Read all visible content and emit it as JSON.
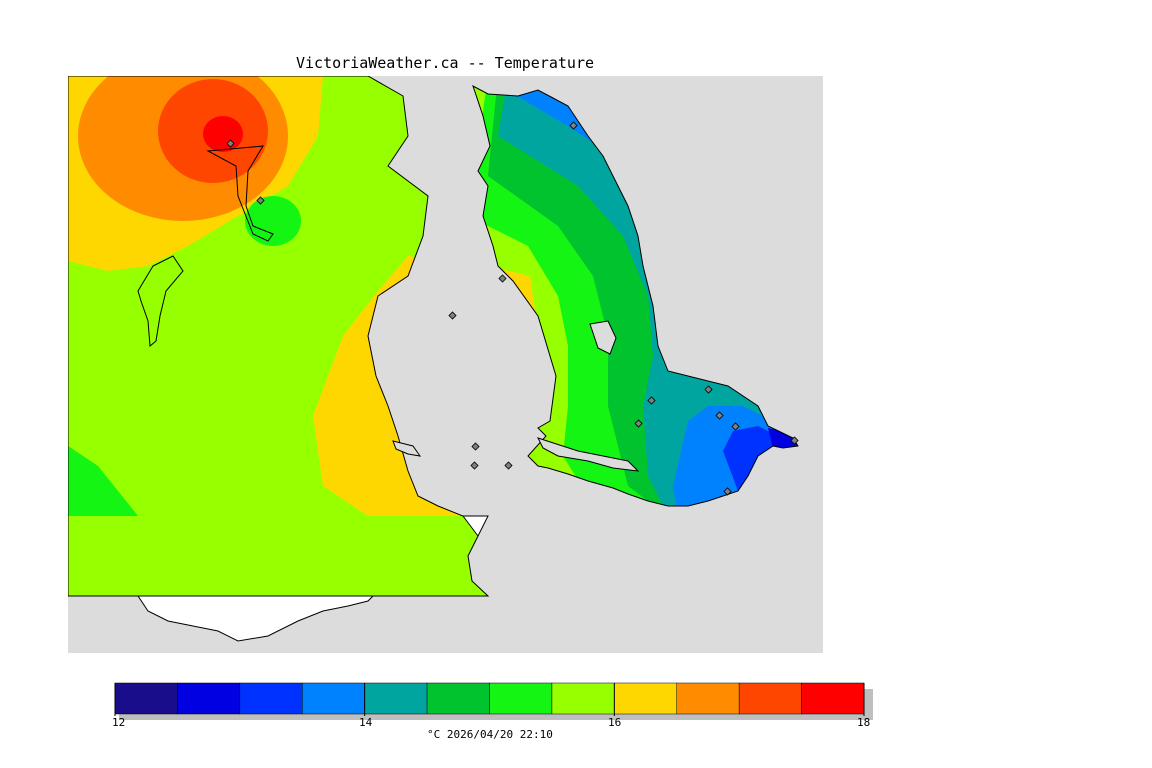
{
  "title": "VictoriaWeather.ca -- Temperature",
  "colors": {
    "land_shade": "#dcdcdc",
    "outline": "#000000",
    "station_fill": "#808080"
  },
  "legend": {
    "min": 12,
    "max": 18,
    "step": 0.5,
    "bins": [
      {
        "from": 12.0,
        "to": 12.5,
        "color": "#1a0d8c"
      },
      {
        "from": 12.5,
        "to": 13.0,
        "color": "#0000e0"
      },
      {
        "from": 13.0,
        "to": 13.5,
        "color": "#0032ff"
      },
      {
        "from": 13.5,
        "to": 14.0,
        "color": "#0082ff"
      },
      {
        "from": 14.0,
        "to": 14.5,
        "color": "#00a5a0"
      },
      {
        "from": 14.5,
        "to": 15.0,
        "color": "#00c32d"
      },
      {
        "from": 15.0,
        "to": 15.5,
        "color": "#14f514"
      },
      {
        "from": 15.5,
        "to": 16.0,
        "color": "#96ff00"
      },
      {
        "from": 16.0,
        "to": 16.5,
        "color": "#ffd700"
      },
      {
        "from": 16.5,
        "to": 17.0,
        "color": "#ff8c00"
      },
      {
        "from": 17.0,
        "to": 17.5,
        "color": "#ff4600"
      },
      {
        "from": 17.5,
        "to": 18.0,
        "color": "#ff0000"
      }
    ],
    "tick_labels": [
      "12",
      "14",
      "16",
      "18"
    ],
    "caption": "°C  2026/04/20 22:10"
  }
}
